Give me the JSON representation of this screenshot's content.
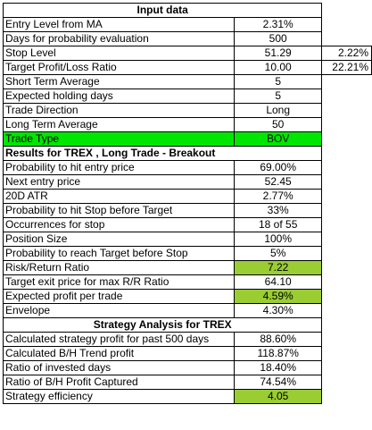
{
  "sections": {
    "input_title": "Input data",
    "results_title": "Results for TREX , Long Trade - Breakout",
    "strategy_title": "Strategy Analysis for TREX"
  },
  "input_rows": [
    {
      "label": "Entry Level from MA",
      "value": "2.31%",
      "extra": ""
    },
    {
      "label": "Days for probability evaluation",
      "value": "500",
      "extra": ""
    },
    {
      "label": "Stop Level",
      "value": "51.29",
      "extra": "2.22%"
    },
    {
      "label": "Target Profit/Loss Ratio",
      "value": "10.00",
      "extra": "22.21%"
    },
    {
      "label": "Short Term Average",
      "value": "5",
      "extra": ""
    },
    {
      "label": "Expected holding days",
      "value": "5",
      "extra": ""
    },
    {
      "label": "Trade Direction",
      "value": "Long",
      "extra": ""
    },
    {
      "label": "Long Term Average",
      "value": "50",
      "extra": ""
    },
    {
      "label": "Trade Type",
      "value": "BOV",
      "extra": ""
    }
  ],
  "result_rows": [
    {
      "label": "Probability to hit entry price",
      "value": "69.00%"
    },
    {
      "label": "Next entry price",
      "value": "52.45"
    },
    {
      "label": "20D ATR",
      "value": "2.77%"
    },
    {
      "label": "Probability to hit Stop before Target",
      "value": "33%"
    },
    {
      "label": "Occurrences for stop",
      "value": "18 of 55"
    },
    {
      "label": "Position Size",
      "value": "100%"
    },
    {
      "label": "Probability to reach Target before Stop",
      "value": "5%"
    },
    {
      "label": "Risk/Return Ratio",
      "value": "7.22"
    },
    {
      "label": "Target exit price for max R/R Ratio",
      "value": "64.10"
    },
    {
      "label": "Expected profit per trade",
      "value": "4.59%"
    },
    {
      "label": "Envelope",
      "value": "4.30%"
    }
  ],
  "strategy_rows": [
    {
      "label": "Calculated strategy profit for past 500 days",
      "value": "88.60%"
    },
    {
      "label": "Calculated B/H Trend profit",
      "value": "118.87%"
    },
    {
      "label": "Ratio of invested days",
      "value": "18.40%"
    },
    {
      "label": "Ratio of B/H Profit Captured",
      "value": "74.54%"
    },
    {
      "label": "Strategy efficiency",
      "value": "4.05"
    }
  ],
  "colors": {
    "trade_type_highlight": "#00e600",
    "value_highlight": "#9acd32"
  }
}
